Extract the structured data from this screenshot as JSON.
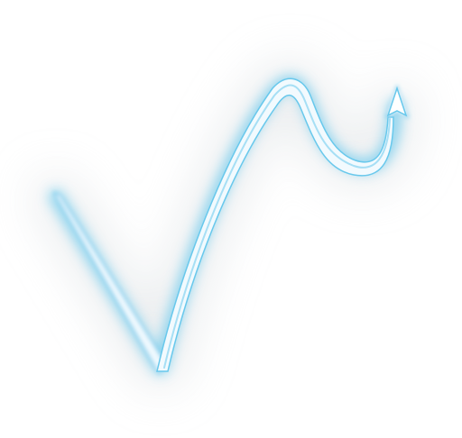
{
  "artwork": {
    "subject": "neon-arrow",
    "background_color": "#ffffff",
    "halo_color": "#d8dde0",
    "glow_color": "#67c8ec",
    "core_color": "#f4fbff",
    "tip_color": "#ffffff"
  }
}
